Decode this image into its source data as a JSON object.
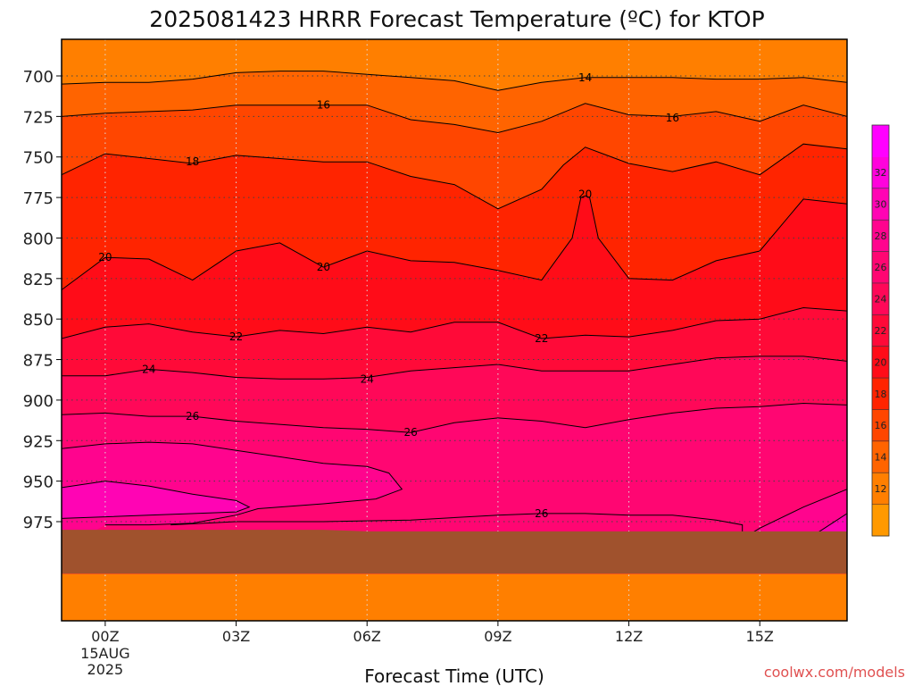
{
  "chart_data": {
    "type": "heatmap",
    "title": "2025081423 HRRR Forecast Temperature (ºC) for KTOP",
    "xlabel": "Forecast Time (UTC)",
    "ylabel": "",
    "x_ticks": [
      {
        "hour": 0,
        "label": "00Z",
        "sub": [
          "15AUG",
          "2025"
        ]
      },
      {
        "hour": 3,
        "label": "03Z"
      },
      {
        "hour": 6,
        "label": "06Z"
      },
      {
        "hour": 9,
        "label": "09Z"
      },
      {
        "hour": 12,
        "label": "12Z"
      },
      {
        "hour": 15,
        "label": "15Z"
      }
    ],
    "xlim_hours": [
      -1,
      17
    ],
    "y_ticks": [
      700,
      725,
      750,
      775,
      800,
      825,
      850,
      875,
      900,
      925,
      950,
      975
    ],
    "ylim_hPa": [
      675,
      987
    ],
    "grid": "dotted",
    "colorbar": {
      "levels": [
        10,
        12,
        14,
        16,
        18,
        20,
        22,
        24,
        26,
        28,
        30,
        32,
        34
      ],
      "labels": [
        12,
        14,
        16,
        18,
        20,
        22,
        24,
        26,
        28,
        30,
        32
      ],
      "colors": [
        "#ff9900",
        "#ff7f00",
        "#ff6400",
        "#ff4600",
        "#ff2400",
        "#ff0c18",
        "#ff0a38",
        "#ff0858",
        "#ff0672",
        "#ff048e",
        "#ff04b4",
        "#ff02dc",
        "#ff00ff"
      ]
    },
    "hours": [
      -1,
      0,
      1,
      2,
      3,
      4,
      5,
      6,
      7,
      8,
      9,
      10,
      11,
      12,
      13,
      14,
      15,
      16,
      17
    ],
    "contours": [
      {
        "level": 14,
        "points": [
          [
            -1,
            705
          ],
          [
            0,
            704
          ],
          [
            1,
            704
          ],
          [
            2,
            702
          ],
          [
            3,
            698
          ],
          [
            4,
            697
          ],
          [
            5,
            697
          ],
          [
            6,
            699
          ],
          [
            7,
            701
          ],
          [
            8,
            703
          ],
          [
            9,
            709
          ],
          [
            10,
            704
          ],
          [
            11,
            701
          ],
          [
            12,
            701
          ],
          [
            13,
            701
          ],
          [
            14,
            702
          ],
          [
            15,
            702
          ],
          [
            16,
            701
          ],
          [
            17,
            704
          ]
        ]
      },
      {
        "level": 16,
        "points": [
          [
            -1,
            725
          ],
          [
            0,
            723
          ],
          [
            1,
            722
          ],
          [
            2,
            721
          ],
          [
            3,
            718
          ],
          [
            4,
            718
          ],
          [
            5,
            718
          ],
          [
            6,
            718
          ],
          [
            7,
            727
          ],
          [
            8,
            730
          ],
          [
            9,
            735
          ],
          [
            10,
            728
          ],
          [
            11,
            717
          ],
          [
            12,
            724
          ],
          [
            13,
            725
          ],
          [
            14,
            722
          ],
          [
            15,
            728
          ],
          [
            16,
            718
          ],
          [
            17,
            725
          ]
        ]
      },
      {
        "level": 18,
        "points": [
          [
            -1,
            761
          ],
          [
            0,
            748
          ],
          [
            1,
            751
          ],
          [
            2,
            754
          ],
          [
            3,
            749
          ],
          [
            4,
            751
          ],
          [
            5,
            753
          ],
          [
            6,
            753
          ],
          [
            7,
            762
          ],
          [
            8,
            767
          ],
          [
            9,
            782
          ],
          [
            10,
            770
          ],
          [
            10.5,
            755
          ],
          [
            11,
            744
          ],
          [
            11.5,
            749
          ],
          [
            12,
            754
          ],
          [
            13,
            759
          ],
          [
            14,
            753
          ],
          [
            15,
            761
          ],
          [
            16,
            742
          ],
          [
            17,
            745
          ]
        ]
      },
      {
        "level": 20,
        "points": [
          [
            -1,
            832
          ],
          [
            0,
            812
          ],
          [
            1,
            813
          ],
          [
            2,
            826
          ],
          [
            3,
            808
          ],
          [
            4,
            803
          ],
          [
            5,
            818
          ],
          [
            6,
            808
          ],
          [
            7,
            814
          ],
          [
            8,
            815
          ],
          [
            9,
            820
          ],
          [
            10,
            826
          ],
          [
            10.7,
            800
          ],
          [
            10.9,
            775
          ],
          [
            11,
            774
          ],
          [
            11.1,
            775
          ],
          [
            11.3,
            800
          ],
          [
            12,
            825
          ],
          [
            13,
            826
          ],
          [
            14,
            814
          ],
          [
            15,
            808
          ],
          [
            16,
            776
          ],
          [
            17,
            779
          ]
        ]
      },
      {
        "level": 22,
        "points": [
          [
            -1,
            862
          ],
          [
            0,
            855
          ],
          [
            1,
            853
          ],
          [
            2,
            858
          ],
          [
            3,
            861
          ],
          [
            4,
            857
          ],
          [
            5,
            859
          ],
          [
            6,
            855
          ],
          [
            7,
            858
          ],
          [
            8,
            852
          ],
          [
            9,
            852
          ],
          [
            10,
            862
          ],
          [
            11,
            860
          ],
          [
            12,
            861
          ],
          [
            13,
            857
          ],
          [
            14,
            851
          ],
          [
            15,
            850
          ],
          [
            16,
            843
          ],
          [
            17,
            845
          ]
        ]
      },
      {
        "level": 24,
        "points": [
          [
            -1,
            885
          ],
          [
            0,
            885
          ],
          [
            1,
            881
          ],
          [
            2,
            883
          ],
          [
            3,
            886
          ],
          [
            4,
            887
          ],
          [
            5,
            887
          ],
          [
            6,
            886
          ],
          [
            7,
            882
          ],
          [
            8,
            880
          ],
          [
            9,
            878
          ],
          [
            10,
            882
          ],
          [
            11,
            882
          ],
          [
            12,
            882
          ],
          [
            13,
            878
          ],
          [
            14,
            874
          ],
          [
            15,
            873
          ],
          [
            16,
            873
          ],
          [
            17,
            876
          ]
        ]
      },
      {
        "level": 26,
        "points": [
          [
            -1,
            909
          ],
          [
            0,
            908
          ],
          [
            1,
            910
          ],
          [
            2,
            910
          ],
          [
            3,
            913
          ],
          [
            4,
            915
          ],
          [
            5,
            917
          ],
          [
            6,
            918
          ],
          [
            7,
            920
          ],
          [
            8,
            914
          ],
          [
            9,
            911
          ],
          [
            10,
            913
          ],
          [
            11,
            917
          ],
          [
            12,
            912
          ],
          [
            13,
            908
          ],
          [
            14,
            905
          ],
          [
            15,
            904
          ],
          [
            16,
            902
          ],
          [
            17,
            903
          ]
        ]
      },
      {
        "level": 28,
        "points": [
          [
            -1,
            930
          ],
          [
            0,
            927
          ],
          [
            1,
            926
          ],
          [
            2,
            927
          ],
          [
            3,
            931
          ],
          [
            4,
            935
          ],
          [
            5,
            939
          ],
          [
            6,
            941
          ],
          [
            6.5,
            945
          ],
          [
            6.8,
            955
          ],
          [
            6.2,
            961
          ],
          [
            5,
            964
          ],
          [
            3.5,
            967
          ],
          [
            3,
            971
          ],
          [
            2,
            976
          ],
          [
            1,
            977
          ],
          [
            0,
            977
          ]
        ]
      },
      {
        "level": 30,
        "points": [
          [
            -1,
            954
          ],
          [
            0,
            950
          ],
          [
            1,
            953
          ],
          [
            2,
            958
          ],
          [
            3,
            962
          ],
          [
            3.3,
            966
          ],
          [
            3,
            969
          ],
          [
            1,
            971
          ],
          [
            0,
            972
          ],
          [
            -1,
            973
          ]
        ]
      },
      {
        "level": 26,
        "points": [
          [
            1.5,
            977
          ],
          [
            3,
            975
          ],
          [
            5,
            975
          ],
          [
            7,
            974
          ],
          [
            9,
            971
          ],
          [
            10,
            970
          ],
          [
            11,
            970
          ],
          [
            12,
            971
          ],
          [
            13,
            971
          ],
          [
            14,
            974
          ],
          [
            14.6,
            977
          ],
          [
            14.6,
            984
          ]
        ]
      },
      {
        "level": 28,
        "points": [
          [
            14.7,
            984
          ],
          [
            15,
            979
          ],
          [
            16,
            966
          ],
          [
            17,
            955
          ]
        ]
      },
      {
        "level": 30,
        "points": [
          [
            16.2,
            984
          ],
          [
            17,
            970
          ]
        ]
      }
    ],
    "contour_labels": [
      {
        "text": "14",
        "hour": 11,
        "p": 701
      },
      {
        "text": "16",
        "hour": 5,
        "p": 718
      },
      {
        "text": "16",
        "hour": 13,
        "p": 726
      },
      {
        "text": "18",
        "hour": 2,
        "p": 753
      },
      {
        "text": "20",
        "hour": 0,
        "p": 812
      },
      {
        "text": "20",
        "hour": 5,
        "p": 818
      },
      {
        "text": "20",
        "hour": 11,
        "p": 773
      },
      {
        "text": "22",
        "hour": 3,
        "p": 861
      },
      {
        "text": "22",
        "hour": 10,
        "p": 862
      },
      {
        "text": "24",
        "hour": 1,
        "p": 881
      },
      {
        "text": "24",
        "hour": 6,
        "p": 887
      },
      {
        "text": "26",
        "hour": 2,
        "p": 910
      },
      {
        "text": "26",
        "hour": 7,
        "p": 920
      },
      {
        "text": "26",
        "hour": 10,
        "p": 970
      }
    ],
    "ground": {
      "color": "#a0522d",
      "surface": [
        [
          -1,
          980
        ],
        [
          0,
          980
        ],
        [
          1,
          980
        ],
        [
          2,
          980
        ],
        [
          3,
          980
        ],
        [
          4,
          980
        ],
        [
          5,
          980
        ],
        [
          6,
          981
        ],
        [
          7,
          981
        ],
        [
          8,
          981
        ],
        [
          9,
          981
        ],
        [
          10,
          981
        ],
        [
          11,
          981
        ],
        [
          12,
          981
        ],
        [
          13,
          981
        ],
        [
          14,
          981
        ],
        [
          15,
          981
        ],
        [
          16,
          981
        ],
        [
          17,
          981
        ]
      ]
    }
  },
  "watermark": "coolwx.com/models"
}
